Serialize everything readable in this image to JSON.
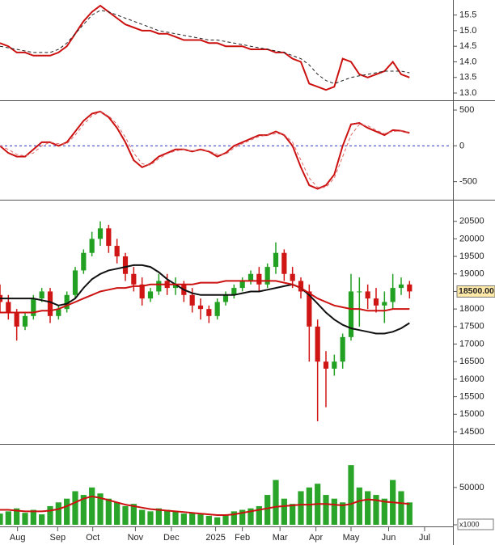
{
  "chart_data": [
    {
      "type": "line",
      "x": [
        0,
        1,
        2,
        3,
        4,
        5,
        6,
        7,
        8,
        9,
        10,
        11,
        12,
        13,
        14,
        15,
        16,
        17,
        18,
        19,
        20,
        21,
        22,
        23,
        24,
        25,
        26,
        27,
        28,
        29,
        30,
        31,
        32,
        33,
        34,
        35,
        36,
        37,
        38,
        39,
        40,
        41,
        42,
        43,
        44,
        45,
        46,
        47,
        48,
        49
      ],
      "xlim": [
        0,
        54
      ],
      "ylim": [
        12.82,
        15.93
      ],
      "yticks": [
        {
          "value": 13,
          "label": "13.0"
        },
        13.5,
        {
          "value": 14,
          "label": "14.0"
        },
        14.5,
        {
          "value": 15,
          "label": "15.0"
        },
        15.5
      ],
      "series": [
        {
          "color": "#cc1111",
          "style": "solid",
          "values": [
            14.6,
            14.5,
            14.3,
            14.3,
            14.2,
            14.2,
            14.2,
            14.3,
            14.5,
            14.9,
            15.3,
            15.6,
            15.8,
            15.6,
            15.4,
            15.2,
            15.1,
            15.0,
            15.0,
            14.9,
            14.9,
            14.8,
            14.7,
            14.7,
            14.7,
            14.6,
            14.6,
            14.5,
            14.5,
            14.5,
            14.4,
            14.4,
            14.4,
            14.3,
            14.3,
            14.1,
            14.0,
            13.3,
            13.2,
            13.1,
            13.2,
            14.1,
            14.0,
            13.6,
            13.5,
            13.6,
            13.7,
            14.0,
            13.6,
            13.5
          ]
        },
        {
          "color": "#222222",
          "style": "dashed",
          "values": [
            14.5,
            14.45,
            14.4,
            14.35,
            14.3,
            14.3,
            14.3,
            14.4,
            14.6,
            14.9,
            15.2,
            15.5,
            15.65,
            15.6,
            15.5,
            15.4,
            15.3,
            15.2,
            15.1,
            15.0,
            14.95,
            14.9,
            14.85,
            14.8,
            14.75,
            14.7,
            14.7,
            14.65,
            14.6,
            14.55,
            14.5,
            14.45,
            14.4,
            14.35,
            14.3,
            14.2,
            14.1,
            13.9,
            13.6,
            13.4,
            13.3,
            13.4,
            13.5,
            13.55,
            13.6,
            13.65,
            13.7,
            13.7,
            13.7,
            13.65
          ]
        }
      ]
    },
    {
      "type": "line",
      "x": [
        0,
        1,
        2,
        3,
        4,
        5,
        6,
        7,
        8,
        9,
        10,
        11,
        12,
        13,
        14,
        15,
        16,
        17,
        18,
        19,
        20,
        21,
        22,
        23,
        24,
        25,
        26,
        27,
        28,
        29,
        30,
        31,
        32,
        33,
        34,
        35,
        36,
        37,
        38,
        39,
        40,
        41,
        42,
        43,
        44,
        45,
        46,
        47,
        48,
        49
      ],
      "xlim": [
        0,
        54
      ],
      "ylim": [
        -730,
        580
      ],
      "yticks": [
        -500,
        0,
        500
      ],
      "zero_line": true,
      "zero_line_color": "#2b35c8",
      "series": [
        {
          "color": "#cc1111",
          "style": "solid",
          "values": [
            0,
            -100,
            -150,
            -150,
            -50,
            50,
            50,
            0,
            50,
            200,
            350,
            450,
            480,
            400,
            250,
            50,
            -200,
            -300,
            -250,
            -150,
            -100,
            -50,
            -50,
            -80,
            -50,
            -80,
            -150,
            -100,
            0,
            50,
            100,
            150,
            150,
            200,
            150,
            0,
            -300,
            -550,
            -600,
            -550,
            -400,
            0,
            300,
            320,
            250,
            200,
            150,
            220,
            210,
            180
          ]
        },
        {
          "color": "#dd6666",
          "style": "dashed",
          "values": [
            0,
            -50,
            -120,
            -140,
            -100,
            0,
            50,
            30,
            30,
            150,
            300,
            420,
            470,
            420,
            300,
            120,
            -100,
            -250,
            -270,
            -180,
            -110,
            -70,
            -50,
            -70,
            -60,
            -70,
            -120,
            -120,
            -30,
            30,
            80,
            130,
            150,
            170,
            160,
            50,
            -200,
            -450,
            -580,
            -580,
            -450,
            -150,
            150,
            300,
            280,
            220,
            170,
            200,
            210,
            190
          ]
        }
      ]
    },
    {
      "type": "candlestick",
      "x": [
        0,
        1,
        2,
        3,
        4,
        5,
        6,
        7,
        8,
        9,
        10,
        11,
        12,
        13,
        14,
        15,
        16,
        17,
        18,
        19,
        20,
        21,
        22,
        23,
        24,
        25,
        26,
        27,
        28,
        29,
        30,
        31,
        32,
        33,
        34,
        35,
        36,
        37,
        38,
        39,
        40,
        41,
        42,
        43,
        44,
        45,
        46,
        47,
        48,
        49
      ],
      "xlim": [
        0,
        54
      ],
      "ylim": [
        14200,
        21000
      ],
      "yticks": [
        14500,
        15000,
        15500,
        16000,
        16500,
        17000,
        17500,
        18000,
        18500,
        19000,
        19500,
        20000,
        20500
      ],
      "up_color": "#22a022",
      "down_color": "#d01515",
      "open": [
        18400,
        18200,
        17900,
        17500,
        17800,
        18300,
        18500,
        17800,
        18000,
        18400,
        19100,
        19600,
        20000,
        20300,
        19800,
        19500,
        19000,
        18700,
        18300,
        18500,
        18800,
        18600,
        18700,
        18400,
        18100,
        18000,
        17800,
        18200,
        18400,
        18600,
        18800,
        19000,
        18700,
        19200,
        19600,
        19000,
        18800,
        18500,
        17500,
        16500,
        16300,
        16500,
        17200,
        18500,
        18500,
        18300,
        18100,
        18200,
        18600,
        18700
      ],
      "high": [
        18700,
        18400,
        18000,
        17900,
        18400,
        18600,
        18600,
        18100,
        18500,
        19200,
        19700,
        20200,
        20500,
        20400,
        20000,
        19600,
        19200,
        18900,
        18600,
        19000,
        19000,
        18900,
        18800,
        18600,
        18300,
        18100,
        18300,
        18500,
        18700,
        18900,
        19100,
        19200,
        19300,
        19900,
        19700,
        19200,
        18900,
        18700,
        17700,
        16800,
        16700,
        17300,
        19000,
        18900,
        18700,
        18600,
        18500,
        19000,
        18900,
        18800
      ],
      "low": [
        17900,
        17700,
        17100,
        17400,
        17700,
        18200,
        17600,
        17700,
        17900,
        18300,
        19000,
        19500,
        19800,
        19600,
        19300,
        18800,
        18500,
        18100,
        18200,
        18400,
        18400,
        18400,
        18200,
        17900,
        17700,
        17600,
        17700,
        18100,
        18300,
        18500,
        18700,
        18500,
        18600,
        19000,
        18800,
        18600,
        18300,
        16500,
        14800,
        15200,
        16100,
        16300,
        17100,
        17500,
        18000,
        17900,
        17600,
        18000,
        18400,
        18300
      ],
      "close": [
        18200,
        17900,
        17500,
        17800,
        18300,
        18500,
        17800,
        18000,
        18400,
        19100,
        19600,
        20000,
        20300,
        19800,
        19500,
        19000,
        18700,
        18300,
        18500,
        18800,
        18600,
        18700,
        18400,
        18100,
        18000,
        17800,
        18200,
        18400,
        18600,
        18800,
        19000,
        18700,
        19200,
        19600,
        19000,
        18800,
        18500,
        17500,
        16500,
        16300,
        16500,
        17200,
        18500,
        18500,
        18300,
        18100,
        18200,
        18600,
        18700,
        18500
      ],
      "series": [
        {
          "color": "#111111",
          "style": "solid",
          "values": [
            18300,
            18300,
            18300,
            18300,
            18300,
            18250,
            18200,
            18100,
            18150,
            18300,
            18600,
            18850,
            19000,
            19100,
            19150,
            19200,
            19250,
            19250,
            19200,
            19050,
            18850,
            18700,
            18550,
            18450,
            18400,
            18400,
            18400,
            18400,
            18400,
            18450,
            18500,
            18500,
            18550,
            18600,
            18650,
            18700,
            18600,
            18400,
            18150,
            17900,
            17700,
            17550,
            17450,
            17400,
            17350,
            17300,
            17300,
            17350,
            17450,
            17600
          ]
        },
        {
          "color": "#cc1111",
          "style": "solid",
          "values": [
            17900,
            17900,
            17900,
            17900,
            17900,
            17950,
            17950,
            18000,
            18100,
            18200,
            18300,
            18400,
            18500,
            18550,
            18600,
            18600,
            18650,
            18650,
            18700,
            18700,
            18700,
            18700,
            18700,
            18700,
            18750,
            18750,
            18750,
            18800,
            18800,
            18800,
            18800,
            18800,
            18800,
            18800,
            18750,
            18700,
            18600,
            18450,
            18300,
            18200,
            18100,
            18050,
            18000,
            18000,
            17950,
            17950,
            17950,
            18000,
            18000,
            18000
          ]
        }
      ],
      "last_price": {
        "value": 18500,
        "label": "18500.00"
      }
    },
    {
      "type": "volume",
      "x": [
        0,
        1,
        2,
        3,
        4,
        5,
        6,
        7,
        8,
        9,
        10,
        11,
        12,
        13,
        14,
        15,
        16,
        17,
        18,
        19,
        20,
        21,
        22,
        23,
        24,
        25,
        26,
        27,
        28,
        29,
        30,
        31,
        32,
        33,
        34,
        35,
        36,
        37,
        38,
        39,
        40,
        41,
        42,
        43,
        44,
        45,
        46,
        47,
        48,
        49
      ],
      "xlim": [
        0,
        54
      ],
      "ylim": [
        0,
        104000
      ],
      "yticks": [
        0,
        50000
      ],
      "unit_label": "x1000",
      "xticks": [
        {
          "value": 2.1,
          "label": "Aug"
        },
        {
          "value": 6.9,
          "label": "Sep"
        },
        {
          "value": 11.1,
          "label": "Oct"
        },
        {
          "value": 16.2,
          "label": "Nov"
        },
        {
          "value": 20.5,
          "label": "Dec"
        },
        {
          "value": 25.8,
          "label": "2025"
        },
        {
          "value": 29.0,
          "label": "Feb"
        },
        {
          "value": 33.5,
          "label": "Mar"
        },
        {
          "value": 37.8,
          "label": "Apr"
        },
        {
          "value": 42.0,
          "label": "May"
        },
        {
          "value": 46.5,
          "label": "Jun"
        },
        {
          "value": 50.8,
          "label": "Jul"
        }
      ],
      "series": [
        {
          "kind": "bar",
          "color": "#2aa52a",
          "values": [
            15000,
            18000,
            22000,
            16000,
            20000,
            14000,
            25000,
            30000,
            35000,
            45000,
            40000,
            50000,
            42000,
            35000,
            30000,
            25000,
            28000,
            20000,
            18000,
            22000,
            20000,
            18000,
            15000,
            16000,
            14000,
            12000,
            10000,
            14000,
            18000,
            20000,
            22000,
            25000,
            40000,
            60000,
            35000,
            28000,
            45000,
            50000,
            55000,
            40000,
            35000,
            30000,
            80000,
            50000,
            45000,
            40000,
            35000,
            60000,
            45000,
            30000
          ]
        },
        {
          "kind": "line",
          "color": "#cc1111",
          "values": [
            20000,
            20000,
            19000,
            18000,
            18000,
            18000,
            19000,
            21000,
            25000,
            30000,
            35000,
            38000,
            36000,
            33000,
            30000,
            27000,
            25000,
            23000,
            21000,
            20000,
            19000,
            18000,
            17000,
            16000,
            15000,
            14000,
            13000,
            13000,
            14000,
            16000,
            18000,
            20000,
            22000,
            24000,
            25000,
            26000,
            27000,
            27000,
            28000,
            28000,
            27000,
            26000,
            28000,
            32000,
            34000,
            33000,
            31000,
            30000,
            29000,
            28000
          ]
        }
      ]
    }
  ]
}
